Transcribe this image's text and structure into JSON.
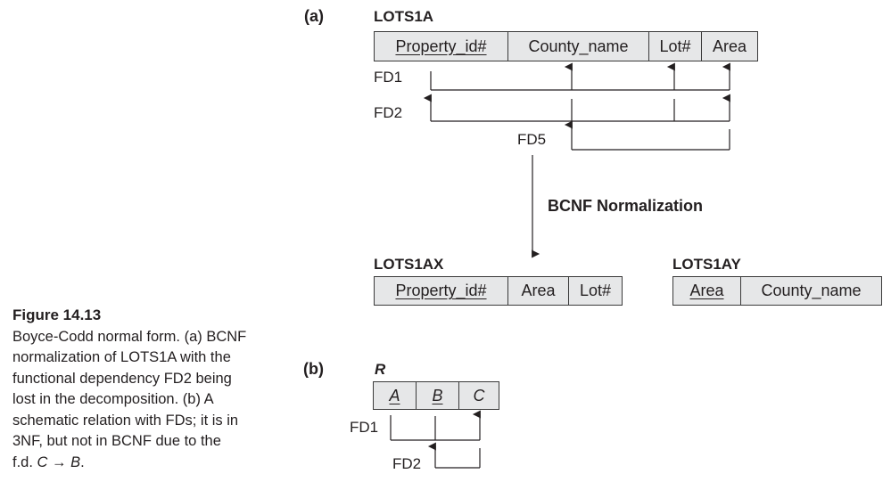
{
  "section_a": "(a)",
  "section_b": "(b)",
  "lots1a": {
    "title": "LOTS1A",
    "columns": [
      "Property_id#",
      "County_name",
      "Lot#",
      "Area"
    ]
  },
  "fds_a": {
    "fd1": "FD1",
    "fd2": "FD2",
    "fd5": "FD5"
  },
  "normalization_label": "BCNF Normalization",
  "lots1ax": {
    "title": "LOTS1AX",
    "columns": [
      "Property_id#",
      "Area",
      "Lot#"
    ]
  },
  "lots1ay": {
    "title": "LOTS1AY",
    "columns": [
      "Area",
      "County_name"
    ]
  },
  "relation_r": {
    "title": "R",
    "columns": [
      "A",
      "B",
      "C"
    ]
  },
  "fds_b": {
    "fd1": "FD1",
    "fd2": "FD2"
  },
  "caption": {
    "heading": "Figure 14.13",
    "line1": "Boyce-Codd normal form. (a) BCNF",
    "line2": "normalization of LOTS1A with the",
    "line3": "functional dependency FD2 being",
    "line4": "lost in the decomposition. (b) A",
    "line5": "schematic relation with FDs; it is in",
    "line6": "3NF, but not in BCNF due to the",
    "line7_prefix": "f.d.",
    "line7_lhs": "C",
    "line7_arrow": "→",
    "line7_rhs": "B",
    "line7_end": "."
  }
}
